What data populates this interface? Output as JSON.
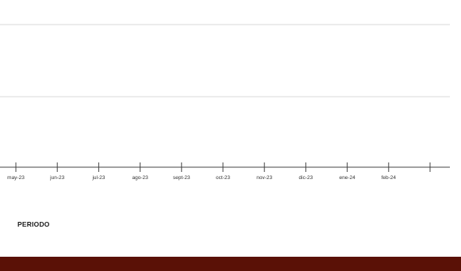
{
  "chart_data": {
    "type": "line",
    "categories": [
      "may-23",
      "jun-23",
      "jul-23",
      "ago-23",
      "sept-23",
      "oct-23",
      "nov-23",
      "dic-23",
      "ene-24",
      "feb-24",
      ""
    ],
    "xlabel": "PERIODO",
    "grid": true,
    "series": []
  },
  "colors": {
    "footer": "#5a1106",
    "axis": "#444444",
    "grid": "#d9d9d9"
  }
}
